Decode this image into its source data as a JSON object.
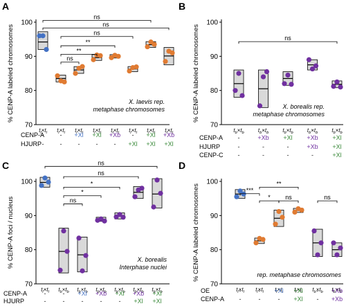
{
  "chart_data": [
    {
      "panel": "A",
      "type": "scatter",
      "ylabel": "% CENP-A labeled chromosomes",
      "ylim": [
        70,
        100
      ],
      "yticks": [
        70,
        80,
        90,
        100
      ],
      "annotation": [
        "X. laevis rep.",
        "metaphase chromosomes"
      ],
      "categories": [
        {
          "a": "l",
          "b": "l",
          "ex": "",
          "c": "#4472c4"
        },
        {
          "a": "l",
          "b": "l",
          "ex": "",
          "c": "#e07b32"
        },
        {
          "a": "l",
          "b": "l",
          "ex": "",
          "c": "#e07b32"
        },
        {
          "a": "l",
          "b": "l",
          "ex": "",
          "c": "#e07b32"
        },
        {
          "a": "l",
          "b": "l",
          "ex": "",
          "c": "#e07b32"
        },
        {
          "a": "l",
          "b": "l",
          "ex": "",
          "c": "#e07b32"
        },
        {
          "a": "l",
          "b": "l",
          "ex": "",
          "c": "#e07b32"
        },
        {
          "a": "l",
          "b": "l",
          "ex": "",
          "c": "#e07b32"
        }
      ],
      "boxes": [
        {
          "lo": 92,
          "med": 94.2,
          "hi": 97.2,
          "pts": [
            96,
            96,
            92
          ]
        },
        {
          "lo": 82.5,
          "med": 83.5,
          "hi": 84.5,
          "pts": [
            84.3,
            82.8,
            82.5
          ]
        },
        {
          "lo": 85,
          "med": 86,
          "hi": 87,
          "pts": [
            85,
            86.5,
            87
          ]
        },
        {
          "lo": 88.8,
          "med": 89.6,
          "hi": 90.5,
          "pts": [
            89,
            90.4,
            90.2
          ]
        },
        {
          "lo": 89.5,
          "med": 90,
          "hi": 90.5,
          "pts": [
            89.6,
            90.3,
            90
          ]
        },
        {
          "lo": 85.5,
          "med": 86.3,
          "hi": 87,
          "pts": [
            85.7,
            86.7,
            86.9
          ]
        },
        {
          "lo": 92.6,
          "med": 93.4,
          "hi": 94.3,
          "pts": [
            92.8,
            94.2,
            93.5
          ]
        },
        {
          "lo": 87.5,
          "med": 90.1,
          "hi": 92.6,
          "pts": [
            88.5,
            91.5,
            91
          ]
        }
      ],
      "sig": [
        {
          "from": 0,
          "to": 6,
          "label": "ns",
          "y": 100.5
        },
        {
          "from": 0,
          "to": 7,
          "label": "ns",
          "y": 98.3
        },
        {
          "from": 1,
          "to": 5,
          "label": "ns",
          "y": 95.8
        },
        {
          "from": 1,
          "to": 4,
          "label": "**",
          "y": 93.1
        },
        {
          "from": 1,
          "to": 3,
          "label": "**",
          "y": 90.6
        },
        {
          "from": 1,
          "to": 2,
          "label": "ns",
          "y": 88.3
        }
      ],
      "rows": [
        {
          "label": "CENP-A",
          "cells": [
            {
              "t": "-",
              "c": "#222"
            },
            {
              "t": "-",
              "c": "#222"
            },
            {
              "t": "+Xl",
              "c": "#4472c4"
            },
            {
              "t": "+Xl",
              "c": "#3a8a3a"
            },
            {
              "t": "+Xb",
              "c": "#7030a0"
            },
            {
              "t": "-",
              "c": "#222"
            },
            {
              "t": "+Xl",
              "c": "#3a8a3a"
            },
            {
              "t": "+Xb",
              "c": "#7030a0"
            }
          ]
        },
        {
          "label": "HJURP",
          "cells": [
            {
              "t": "-",
              "c": "#222"
            },
            {
              "t": "-",
              "c": "#222"
            },
            {
              "t": "-",
              "c": "#222"
            },
            {
              "t": "-",
              "c": "#222"
            },
            {
              "t": "-",
              "c": "#222"
            },
            {
              "t": "+Xl",
              "c": "#3a8a3a"
            },
            {
              "t": "+Xl",
              "c": "#3a8a3a"
            },
            {
              "t": "+Xl",
              "c": "#3a8a3a"
            }
          ]
        }
      ]
    },
    {
      "panel": "B",
      "type": "scatter",
      "ylabel": "% CENP-A labeled chromosomes",
      "ylim": [
        70,
        100
      ],
      "yticks": [
        70,
        80,
        90,
        100
      ],
      "annotation": [
        "X. borealis rep.",
        "metaphase chromosomes"
      ],
      "categories": [
        {
          "a": "b",
          "b": "b",
          "c": "#7030a0"
        },
        {
          "a": "b",
          "b": "b",
          "c": "#7030a0"
        },
        {
          "a": "b",
          "b": "b",
          "c": "#7030a0"
        },
        {
          "a": "b",
          "b": "b",
          "c": "#7030a0"
        },
        {
          "a": "b",
          "b": "b",
          "c": "#7030a0"
        }
      ],
      "boxes": [
        {
          "lo": 78,
          "med": 82,
          "hi": 86,
          "pts": [
            80,
            85,
            78.5
          ]
        },
        {
          "lo": 75,
          "med": 80.5,
          "hi": 86,
          "pts": [
            75.5,
            84,
            85.5
          ]
        },
        {
          "lo": 81.5,
          "med": 83.5,
          "hi": 85.5,
          "pts": [
            82,
            84.5,
            81.8
          ]
        },
        {
          "lo": 86,
          "med": 87.5,
          "hi": 89,
          "pts": [
            89,
            86.3,
            87.2
          ]
        },
        {
          "lo": 80.8,
          "med": 81.8,
          "hi": 82.8,
          "pts": [
            81.2,
            82.5,
            81
          ]
        }
      ],
      "sig": [
        {
          "from": 0,
          "to": 4,
          "label": "ns",
          "y": 94.3
        }
      ],
      "rows": [
        {
          "label": "CENP-A",
          "cells": [
            {
              "t": "-",
              "c": "#222"
            },
            {
              "t": "+Xb",
              "c": "#7030a0"
            },
            {
              "t": "+Xl",
              "c": "#3a8a3a"
            },
            {
              "t": "+Xb",
              "c": "#7030a0"
            },
            {
              "t": "+Xl",
              "c": "#3a8a3a"
            }
          ]
        },
        {
          "label": "HJURP",
          "cells": [
            {
              "t": "-",
              "c": "#222"
            },
            {
              "t": "-",
              "c": "#222"
            },
            {
              "t": "-",
              "c": "#222"
            },
            {
              "t": "+Xb",
              "c": "#7030a0"
            },
            {
              "t": "+Xl",
              "c": "#3a8a3a"
            }
          ]
        },
        {
          "label": "CENP-C",
          "cells": [
            {
              "t": "-",
              "c": "#222"
            },
            {
              "t": "-",
              "c": "#222"
            },
            {
              "t": "-",
              "c": "#222"
            },
            {
              "t": "-",
              "c": "#222"
            },
            {
              "t": "+Xl",
              "c": "#3a8a3a"
            }
          ]
        }
      ]
    },
    {
      "panel": "C",
      "type": "scatter",
      "ylabel": "% CENP-A foci / nucleus",
      "ylim": [
        70,
        100
      ],
      "yticks": [
        70,
        80,
        90,
        100
      ],
      "annotation": [
        "X. borealis",
        "Interphase nuclei"
      ],
      "categories": [
        {
          "a": "l",
          "b": "l",
          "c": "#4472c4"
        },
        {
          "a": "b",
          "b": "b",
          "c": "#7030a0"
        },
        {
          "a": "b",
          "b": "b",
          "c": "#7030a0"
        },
        {
          "a": "b",
          "b": "b",
          "c": "#7030a0"
        },
        {
          "a": "b",
          "b": "b",
          "c": "#7030a0"
        },
        {
          "a": "b",
          "b": "b",
          "c": "#7030a0"
        },
        {
          "a": "b",
          "b": "b",
          "c": "#7030a0"
        }
      ],
      "boxes": [
        {
          "lo": 98.3,
          "med": 99.7,
          "hi": 101.2,
          "pts": [
            98.8,
            101,
            99.8
          ]
        },
        {
          "lo": 73.2,
          "med": 79.5,
          "hi": 86.3,
          "pts": [
            74,
            85.5,
            79.5
          ]
        },
        {
          "lo": 73.5,
          "med": 78.5,
          "hi": 83.7,
          "pts": [
            83.4,
            73.8,
            78.3
          ]
        },
        {
          "lo": 88.3,
          "med": 88.8,
          "hi": 89.5,
          "pts": [
            88.6,
            89,
            88.4
          ]
        },
        {
          "lo": 89,
          "med": 90,
          "hi": 90.8,
          "pts": [
            89.6,
            90.3,
            89.5
          ]
        },
        {
          "lo": 95,
          "med": 96.8,
          "hi": 98.5,
          "pts": [
            95.5,
            97.5,
            98
          ]
        },
        {
          "lo": 92.2,
          "med": 96.3,
          "hi": 100.8,
          "pts": [
            92.5,
            100.4,
            96.5
          ]
        }
      ],
      "sig": [
        {
          "from": 0,
          "to": 6,
          "label": "ns",
          "y": 104.4
        },
        {
          "from": 1,
          "to": 5,
          "label": "ns",
          "y": 101.4
        },
        {
          "from": 1,
          "to": 4,
          "label": "*",
          "y": 98.3
        },
        {
          "from": 1,
          "to": 3,
          "label": "*",
          "y": 95.8
        },
        {
          "from": 1,
          "to": 2,
          "label": "ns",
          "y": 93.4
        }
      ],
      "rows": [
        {
          "label": "CENP-A",
          "cells": [
            {
              "t": "-",
              "c": "#222"
            },
            {
              "t": "-",
              "c": "#222"
            },
            {
              "t": "+Xl",
              "c": "#4472c4"
            },
            {
              "t": "+Xb",
              "c": "#7030a0"
            },
            {
              "t": "+Xl",
              "c": "#3a8a3a"
            },
            {
              "t": "+Xb",
              "c": "#7030a0"
            },
            {
              "t": "+Xl",
              "c": "#3a8a3a"
            }
          ]
        },
        {
          "label": "HJURP",
          "cells": [
            {
              "t": "-",
              "c": "#222"
            },
            {
              "t": "-",
              "c": "#222"
            },
            {
              "t": "-",
              "c": "#222"
            },
            {
              "t": "-",
              "c": "#222"
            },
            {
              "t": "-",
              "c": "#222"
            },
            {
              "t": "+Xl",
              "c": "#3a8a3a"
            },
            {
              "t": "+Xl",
              "c": "#3a8a3a"
            }
          ]
        }
      ]
    },
    {
      "panel": "D",
      "type": "scatter",
      "ylabel": "% CENP-A labeled chromosomes",
      "ylim": [
        70,
        100
      ],
      "yticks": [
        70,
        80,
        90,
        100
      ],
      "annotation": [
        "rep. metaphase chromosomes"
      ],
      "categories": [
        {
          "a": "l",
          "b": "l",
          "c": "#4472c4"
        },
        {
          "a": "l",
          "b": "l",
          "c": "#e07b32"
        },
        {
          "a": "l",
          "b": "l",
          "c": "#e07b32"
        },
        {
          "a": "l",
          "b": "l",
          "c": "#e07b32"
        },
        {
          "a": "b",
          "b": "b",
          "c": "#7030a0"
        },
        {
          "a": "b",
          "b": "b",
          "c": "#7030a0"
        }
      ],
      "boxes": [
        {
          "lo": 95,
          "med": 96.3,
          "hi": 97.6,
          "pts": [
            95.5,
            97.2,
            96.3
          ]
        },
        {
          "lo": 81.8,
          "med": 82.6,
          "hi": 83.4,
          "pts": [
            82,
            83.3,
            83
          ]
        },
        {
          "lo": 86.8,
          "med": 89.2,
          "hi": 91.6,
          "pts": [
            87.5,
            91.2,
            89.5
          ]
        },
        {
          "lo": 90.9,
          "med": 91.5,
          "hi": 92.1,
          "pts": [
            91,
            92,
            91.6
          ]
        },
        {
          "lo": 78,
          "med": 82,
          "hi": 86,
          "pts": [
            85.5,
            78.5,
            82
          ]
        },
        {
          "lo": 78,
          "med": 80,
          "hi": 82,
          "pts": [
            82,
            78.5,
            80.5
          ]
        }
      ],
      "sig": [
        {
          "from": 0,
          "to": 1,
          "label": "***",
          "y": 96.4
        },
        {
          "from": 1,
          "to": 3,
          "label": "**",
          "y": 98.3
        },
        {
          "from": 1,
          "to": 2,
          "label": "*",
          "y": 94.3
        },
        {
          "from": 2,
          "to": 3,
          "label": "ns",
          "y": 94.3
        },
        {
          "from": 4,
          "to": 5,
          "label": "ns",
          "y": 94.3
        }
      ],
      "rows": [
        {
          "label": "OE",
          "cells": [
            {
              "t": "-",
              "c": "#222"
            },
            {
              "t": "-",
              "c": "#222"
            },
            {
              "t": "+Xl",
              "c": "#4472c4"
            },
            {
              "t": "+Xl",
              "c": "#3a8a3a"
            },
            {
              "t": "-",
              "c": "#222"
            },
            {
              "t": "+Xb",
              "c": "#7030a0"
            }
          ]
        },
        {
          "label": "CENP-A",
          "cells": [
            {
              "t": "-",
              "c": "#222"
            },
            {
              "t": "-",
              "c": "#222"
            },
            {
              "t": "-",
              "c": "#222"
            },
            {
              "t": "+Xl",
              "c": "#3a8a3a"
            },
            {
              "t": "-",
              "c": "#222"
            },
            {
              "t": "+Xb",
              "c": "#7030a0"
            }
          ]
        }
      ]
    }
  ]
}
